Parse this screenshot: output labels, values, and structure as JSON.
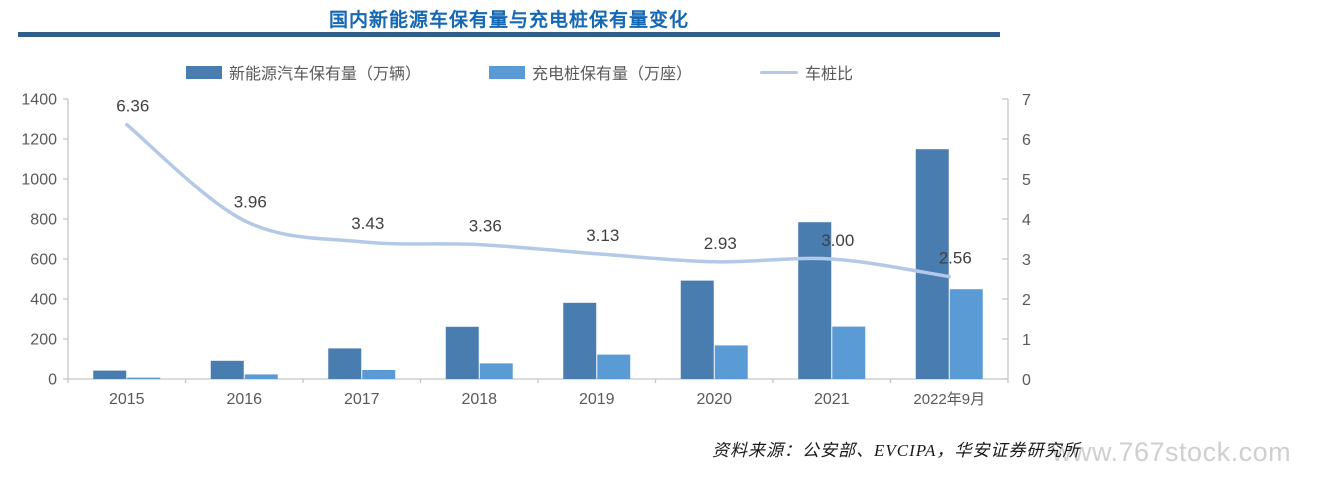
{
  "title": "国内新能源车保有量与充电桩保有量变化",
  "source": "资料来源：公安部、EVCIPA，华安证券研究所",
  "watermark": "www.767stock.com",
  "colors": {
    "title": "#1568B3",
    "divider": "#2F5E8A",
    "nev_bar": "#4A7DAF",
    "pile_bar": "#5B9BD5",
    "ratio_line": "#B4C9E7",
    "axis_line": "#C6C6C6",
    "axis_text": "#595959",
    "data_label_text": "#404040"
  },
  "chart_data": {
    "type": "bar",
    "subtype": "combo bar+line, dual axis",
    "grid": false,
    "legend_position": "top",
    "categories": [
      "2015",
      "2016",
      "2017",
      "2018",
      "2019",
      "2020",
      "2021",
      "2022年9月"
    ],
    "series": [
      {
        "name": "新能源汽车保有量（万辆）",
        "type": "bar",
        "axis": "left",
        "color": "#4A7DAF",
        "values": [
          42,
          91,
          153,
          261,
          381,
          492,
          784,
          1149
        ]
      },
      {
        "name": "充电桩保有量（万座）",
        "type": "bar",
        "axis": "left",
        "color": "#5B9BD5",
        "values": [
          7,
          23,
          45,
          78,
          122,
          168,
          262,
          449
        ]
      },
      {
        "name": "车桩比",
        "type": "line",
        "axis": "right",
        "color": "#B4C9E7",
        "values": [
          6.36,
          3.96,
          3.43,
          3.36,
          3.13,
          2.93,
          3.0,
          2.56
        ],
        "labels": [
          "6.36",
          "3.96",
          "3.43",
          "3.36",
          "3.13",
          "2.93",
          "3.00",
          "2.56"
        ]
      }
    ],
    "left_axis": {
      "min": 0,
      "max": 1400,
      "step": 200,
      "tick_labels": [
        "0",
        "200",
        "400",
        "600",
        "800",
        "1000",
        "1200",
        "1400"
      ]
    },
    "right_axis": {
      "min": 0,
      "max": 7,
      "step": 1,
      "tick_labels": [
        "0",
        "1",
        "2",
        "3",
        "4",
        "5",
        "6",
        "7"
      ]
    }
  }
}
